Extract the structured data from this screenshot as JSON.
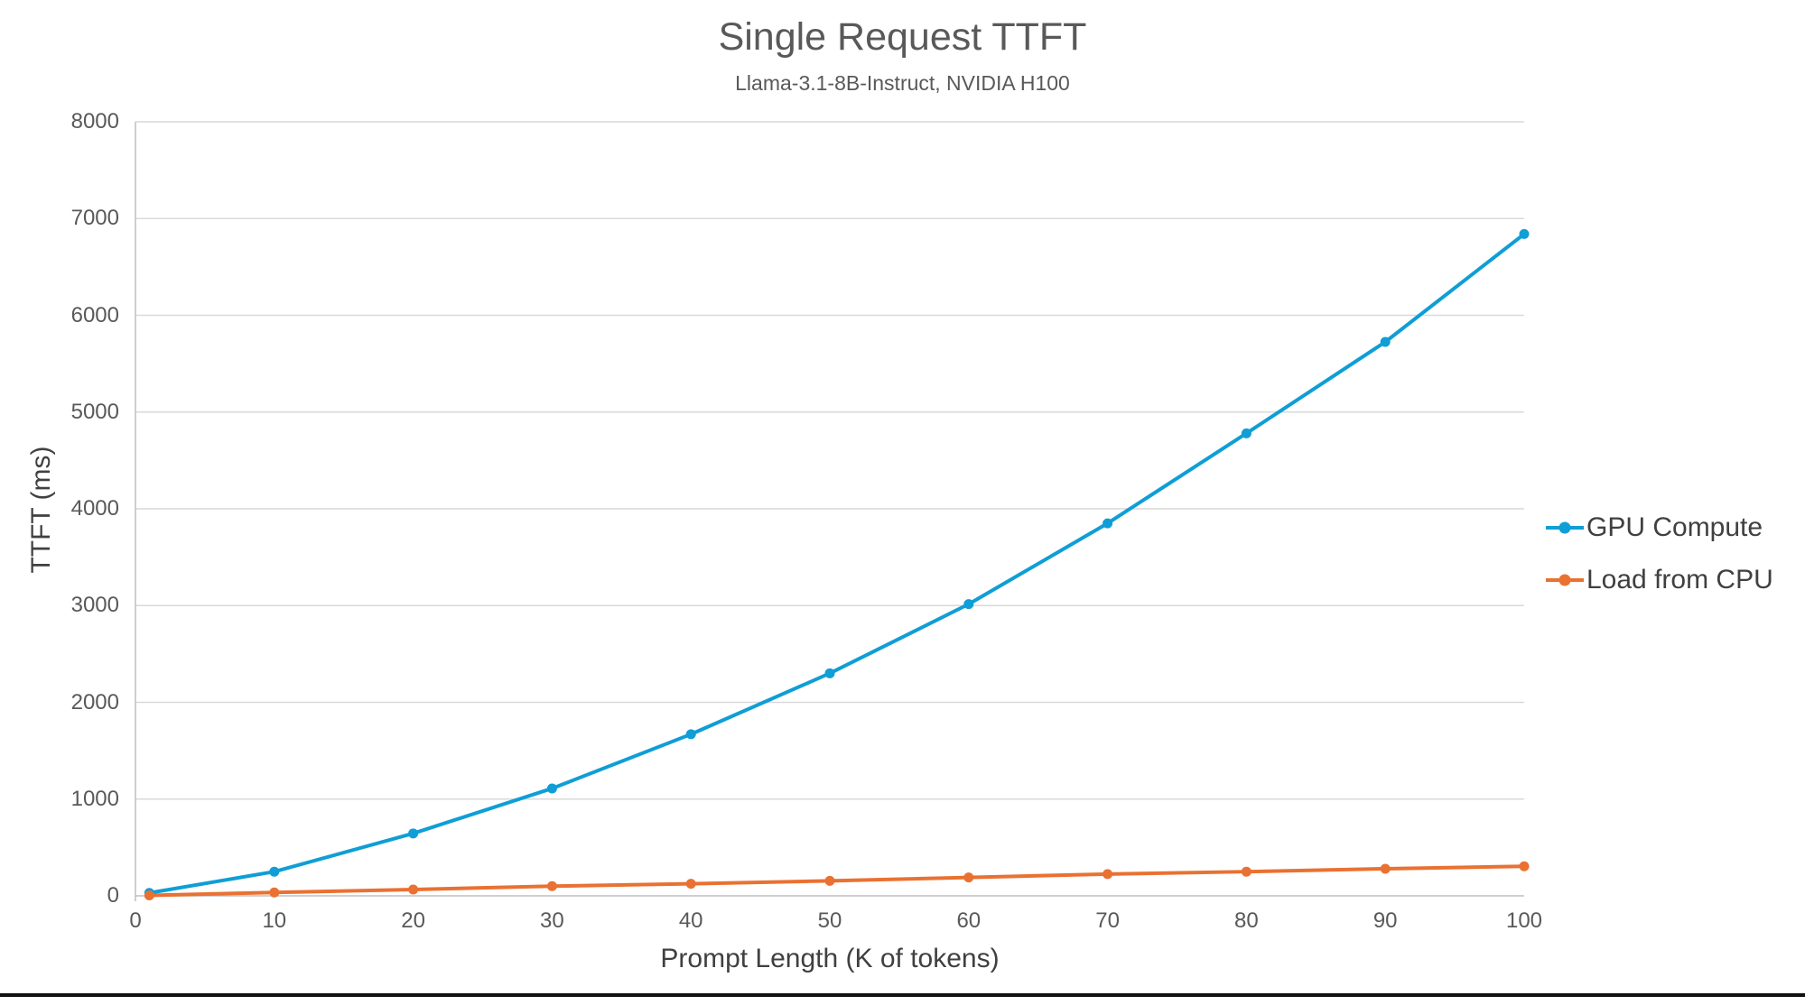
{
  "chart_data": {
    "type": "line",
    "title": "Single Request TTFT",
    "subtitle": "Llama-3.1-8B-Instruct, NVIDIA H100",
    "xlabel": "Prompt Length (K of tokens)",
    "ylabel": "TTFT (ms)",
    "x": [
      1,
      10,
      20,
      30,
      40,
      50,
      60,
      70,
      80,
      90,
      100
    ],
    "series": [
      {
        "name": "GPU Compute",
        "color": "#0F9ED5",
        "values": [
          30,
          250,
          645,
          1110,
          1670,
          2300,
          3015,
          3850,
          4780,
          5725,
          6840
        ]
      },
      {
        "name": "Load from CPU",
        "color": "#E97132",
        "values": [
          5,
          35,
          65,
          100,
          125,
          155,
          190,
          225,
          250,
          280,
          305
        ]
      }
    ],
    "xlim": [
      0,
      100
    ],
    "ylim": [
      0,
      8000
    ],
    "xticks": [
      0,
      10,
      20,
      30,
      40,
      50,
      60,
      70,
      80,
      90,
      100
    ],
    "yticks": [
      0,
      1000,
      2000,
      3000,
      4000,
      5000,
      6000,
      7000,
      8000
    ],
    "grid": "horizontal",
    "legend_position": "right",
    "colors": {
      "grid": "#D9D9D9",
      "axis": "#BFBFBF",
      "tick_text": "#595959",
      "title_text": "#595959",
      "label_text": "#404040"
    }
  }
}
